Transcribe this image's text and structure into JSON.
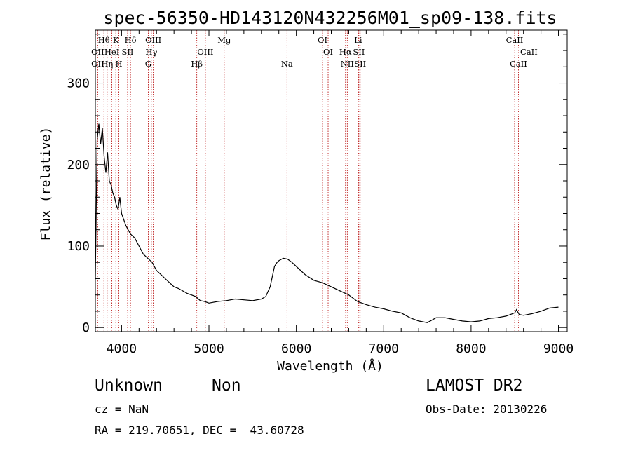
{
  "chart_data": {
    "type": "line",
    "title": "spec-56350-HD143120N432256M01_sp09-138.fits",
    "xlabel": "Wavelength (Å)",
    "ylabel": "Flux (relative)",
    "xlim": [
      3700,
      9100
    ],
    "ylim": [
      -5,
      365
    ],
    "x_ticks": [
      4000,
      5000,
      6000,
      7000,
      8000,
      9000
    ],
    "y_ticks": [
      0,
      100,
      200,
      300
    ],
    "grid": false,
    "series": [
      {
        "x": [
          3700,
          3720,
          3740,
          3760,
          3780,
          3800,
          3820,
          3840,
          3860,
          3880,
          3900,
          3920,
          3940,
          3960,
          3980,
          4000,
          4050,
          4100,
          4150,
          4200,
          4250,
          4300,
          4350,
          4400,
          4450,
          4500,
          4550,
          4600,
          4650,
          4700,
          4750,
          4800,
          4850,
          4900,
          4950,
          5000,
          5100,
          5200,
          5300,
          5400,
          5500,
          5600,
          5650,
          5700,
          5750,
          5780,
          5800,
          5850,
          5900,
          5950,
          6000,
          6100,
          6200,
          6300,
          6400,
          6500,
          6600,
          6700,
          6800,
          6900,
          7000,
          7100,
          7200,
          7300,
          7400,
          7500,
          7600,
          7700,
          7800,
          7900,
          8000,
          8100,
          8200,
          8300,
          8400,
          8500,
          8520,
          8550,
          8600,
          8700,
          8800,
          8900,
          9000
        ],
        "y": [
          60,
          230,
          250,
          225,
          245,
          210,
          190,
          215,
          180,
          175,
          165,
          160,
          150,
          145,
          160,
          140,
          125,
          115,
          110,
          100,
          90,
          85,
          80,
          70,
          65,
          60,
          55,
          50,
          48,
          45,
          42,
          40,
          38,
          33,
          32,
          30,
          32,
          33,
          35,
          34,
          33,
          35,
          38,
          50,
          75,
          80,
          82,
          85,
          84,
          80,
          75,
          65,
          58,
          55,
          50,
          45,
          40,
          32,
          28,
          25,
          23,
          20,
          18,
          12,
          8,
          6,
          12,
          12,
          10,
          8,
          7,
          8,
          11,
          12,
          14,
          18,
          22,
          16,
          15,
          17,
          20,
          24,
          25
        ]
      }
    ],
    "spectral_lines": [
      {
        "label": "Hθ",
        "x": 3798,
        "row": 1
      },
      {
        "label": "K",
        "x": 3934,
        "row": 1
      },
      {
        "label": "Hδ",
        "x": 4102,
        "row": 1
      },
      {
        "label": "OIII",
        "x": 4363,
        "row": 1
      },
      {
        "label": "Mg",
        "x": 5175,
        "row": 1
      },
      {
        "label": "OI",
        "x": 6300,
        "row": 1
      },
      {
        "label": "Li",
        "x": 6708,
        "row": 1
      },
      {
        "label": "CaII",
        "x": 8498,
        "row": 1
      },
      {
        "label": "OII",
        "x": 3727,
        "row": 2
      },
      {
        "label": "HeI",
        "x": 3889,
        "row": 2
      },
      {
        "label": "SII",
        "x": 4069,
        "row": 2
      },
      {
        "label": "Hγ",
        "x": 4341,
        "row": 2
      },
      {
        "label": "OIII",
        "x": 4959,
        "row": 2
      },
      {
        "label": "OI",
        "x": 6364,
        "row": 2
      },
      {
        "label": "Hα",
        "x": 6563,
        "row": 2
      },
      {
        "label": "SII",
        "x": 6716,
        "row": 2
      },
      {
        "label": "CaII",
        "x": 8662,
        "row": 2
      },
      {
        "label": "OII",
        "x": 3727,
        "row": 3
      },
      {
        "label": "Hη",
        "x": 3835,
        "row": 3
      },
      {
        "label": "H",
        "x": 3969,
        "row": 3
      },
      {
        "label": "G",
        "x": 4305,
        "row": 3
      },
      {
        "label": "Hβ",
        "x": 4861,
        "row": 3
      },
      {
        "label": "Na",
        "x": 5893,
        "row": 3
      },
      {
        "label": "NII",
        "x": 6583,
        "row": 3
      },
      {
        "label": "SII",
        "x": 6731,
        "row": 3
      },
      {
        "label": "CaII",
        "x": 8542,
        "row": 3
      }
    ],
    "line_color": "#000000",
    "marker_color": "#b40000"
  },
  "info": {
    "object_type": "Unknown",
    "subclass": "Non",
    "survey": "LAMOST DR2",
    "redshift": "cz = NaN",
    "obs_date": "Obs-Date: 20130226",
    "coords": "RA = 219.70651, DEC =  43.60728"
  }
}
